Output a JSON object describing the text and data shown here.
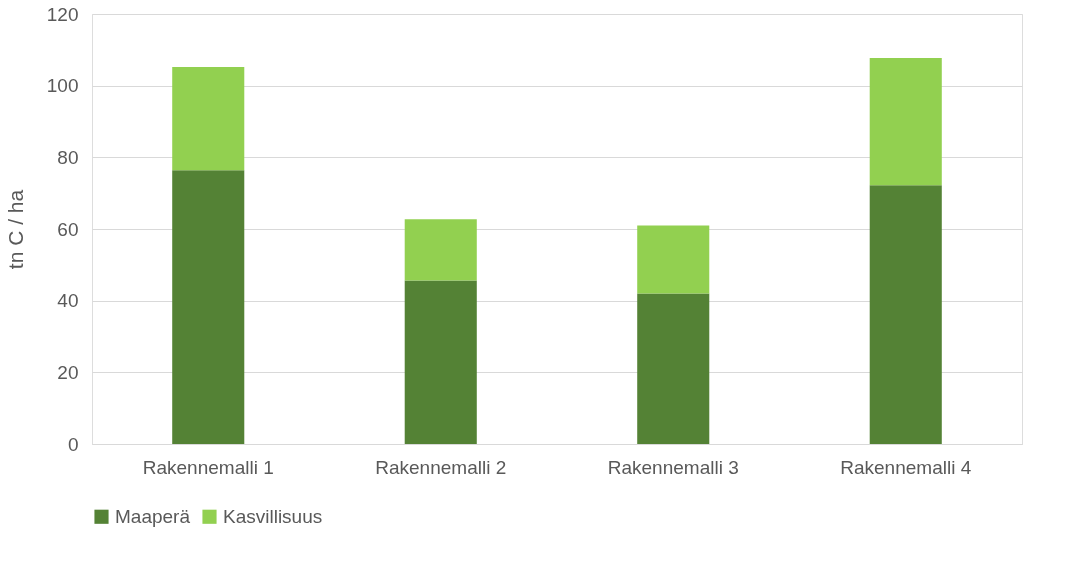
{
  "chart_data": {
    "type": "bar",
    "stacked": true,
    "ylabel": "tn C / ha",
    "categories": [
      "Rakennemalli 1",
      "Rakennemalli 2",
      "Rakennemalli 3",
      "Rakennemalli 4"
    ],
    "series": [
      {
        "name": "Maaperä",
        "color": "#548235",
        "values": [
          76.4,
          45.6,
          42.0,
          72.2
        ]
      },
      {
        "name": "Kasvillisuus",
        "color": "#92d050",
        "values": [
          28.8,
          17.1,
          19.0,
          35.5
        ]
      }
    ],
    "ylim": [
      0,
      120
    ],
    "yticks": [
      0,
      20,
      40,
      60,
      80,
      100,
      120
    ],
    "grid": "y",
    "legend": "bottom"
  }
}
